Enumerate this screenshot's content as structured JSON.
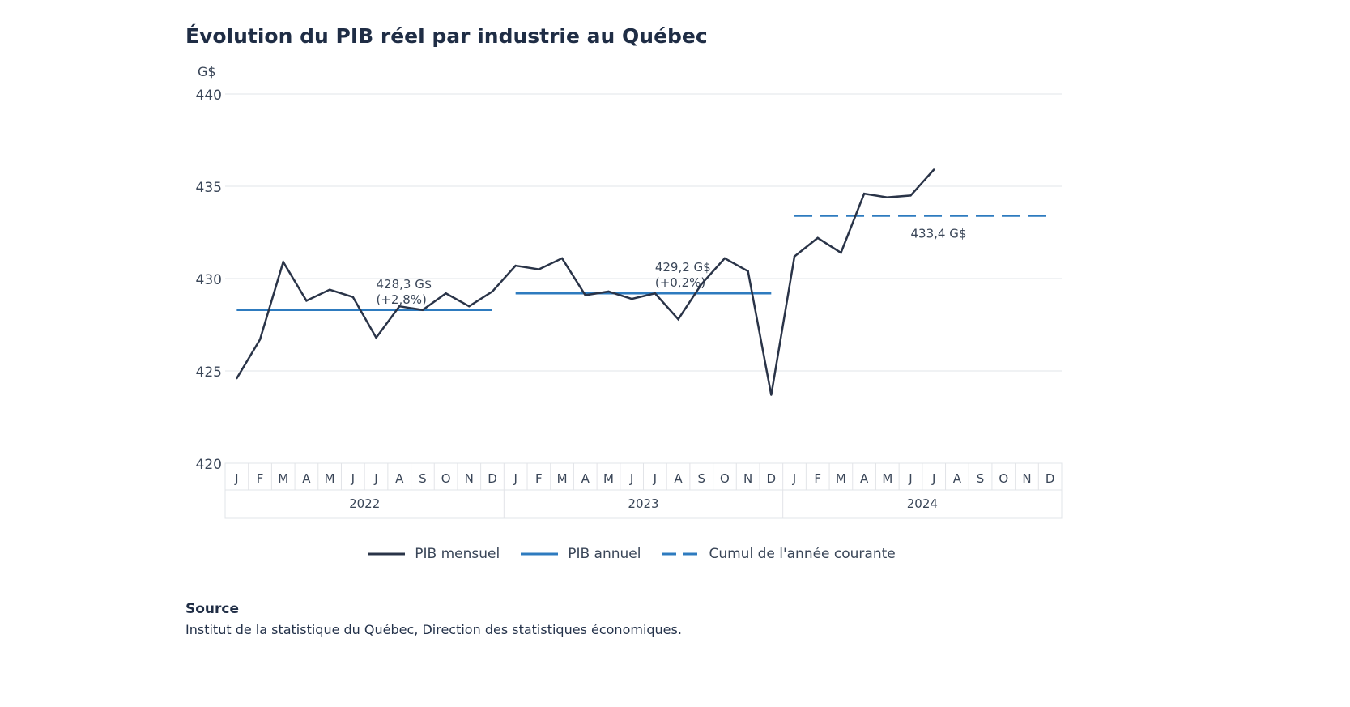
{
  "chart_data": {
    "type": "line",
    "title": "Évolution du PIB réel par industrie au Québec",
    "ylabel": "G$",
    "ylim": [
      420,
      440
    ],
    "yticks": [
      420,
      425,
      430,
      435,
      440
    ],
    "grid": true,
    "legend_placement": "bottom",
    "years": [
      "2022",
      "2023",
      "2024"
    ],
    "months": [
      "J",
      "F",
      "M",
      "A",
      "M",
      "J",
      "J",
      "A",
      "S",
      "O",
      "N",
      "D"
    ],
    "series": [
      {
        "name": "PIB mensuel",
        "color": "#2a3448",
        "style": "solid",
        "values": [
          424.6,
          426.7,
          430.9,
          428.8,
          429.4,
          429.0,
          426.8,
          428.5,
          428.3,
          429.2,
          428.5,
          429.3,
          430.7,
          430.5,
          431.1,
          429.1,
          429.3,
          428.9,
          429.2,
          427.8,
          429.7,
          431.1,
          430.4,
          423.7,
          431.2,
          432.2,
          431.4,
          434.6,
          434.4,
          434.5,
          435.9
        ]
      },
      {
        "name": "PIB annuel",
        "color": "#2e7bbf",
        "style": "solid",
        "segments": [
          {
            "year": "2022",
            "value": 428.3,
            "label": "428,3 G$",
            "sublabel": "(+2,8%)"
          },
          {
            "year": "2023",
            "value": 429.2,
            "label": "429,2 G$",
            "sublabel": "(+0,2%)"
          }
        ]
      },
      {
        "name": "Cumul de l'année courante",
        "color": "#2e7bbf",
        "style": "dashed",
        "segments": [
          {
            "year": "2024",
            "value": 433.4,
            "label": "433,4 G$"
          }
        ]
      }
    ]
  },
  "source": {
    "title": "Source",
    "text": "Institut de la statistique du Québec, Direction des statistiques économiques."
  }
}
